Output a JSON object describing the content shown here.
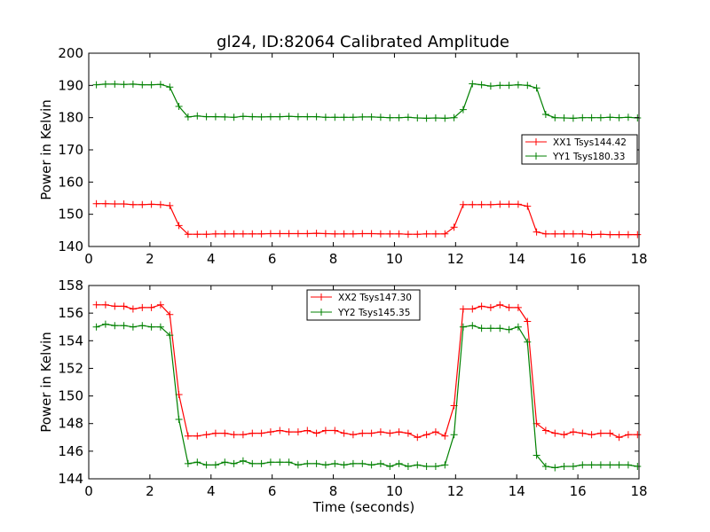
{
  "figure": {
    "title": "gl24, ID:82064 Calibrated Amplitude"
  },
  "chart_data": [
    {
      "type": "line",
      "title": "gl24, ID:82064 Calibrated Amplitude",
      "xlabel": "",
      "ylabel": "Power in Kelvin",
      "xlim": [
        0,
        18
      ],
      "ylim": [
        140,
        200
      ],
      "xticks": [
        0,
        2,
        4,
        6,
        8,
        10,
        12,
        14,
        16,
        18
      ],
      "yticks": [
        140,
        150,
        160,
        170,
        180,
        190,
        200
      ],
      "legend_position": "center-right",
      "grid": false,
      "x": [
        0.25,
        0.55,
        0.85,
        1.15,
        1.45,
        1.75,
        2.05,
        2.35,
        2.65,
        2.95,
        3.25,
        3.55,
        3.85,
        4.15,
        4.45,
        4.75,
        5.05,
        5.35,
        5.65,
        5.95,
        6.25,
        6.55,
        6.85,
        7.15,
        7.45,
        7.75,
        8.05,
        8.35,
        8.65,
        8.95,
        9.25,
        9.55,
        9.85,
        10.15,
        10.45,
        10.75,
        11.05,
        11.35,
        11.65,
        11.95,
        12.25,
        12.55,
        12.85,
        13.15,
        13.45,
        13.75,
        14.05,
        14.35,
        14.65,
        14.95,
        15.25,
        15.55,
        15.85,
        16.15,
        16.45,
        16.75,
        17.05,
        17.35,
        17.65,
        17.95
      ],
      "series": [
        {
          "name": "XX1 Tsys144.42",
          "color": "#ff0000",
          "values": [
            153.3,
            153.3,
            153.2,
            153.2,
            153.0,
            153.0,
            153.1,
            153.0,
            152.7,
            146.5,
            143.8,
            143.8,
            143.8,
            143.9,
            143.9,
            143.9,
            143.9,
            143.9,
            143.9,
            144.0,
            144.0,
            144.0,
            144.0,
            144.0,
            144.1,
            144.0,
            143.9,
            143.9,
            143.9,
            144.0,
            144.0,
            143.9,
            143.9,
            143.9,
            143.8,
            143.8,
            143.9,
            143.9,
            143.9,
            146.0,
            153.0,
            153.0,
            153.0,
            153.0,
            153.1,
            153.1,
            153.1,
            152.5,
            144.5,
            143.9,
            143.9,
            143.9,
            143.9,
            143.9,
            143.7,
            143.8,
            143.7,
            143.7,
            143.7,
            143.7
          ]
        },
        {
          "name": "YY1 Tsys180.33",
          "color": "#008000",
          "values": [
            190.2,
            190.4,
            190.4,
            190.3,
            190.4,
            190.2,
            190.2,
            190.3,
            189.5,
            183.5,
            180.2,
            180.5,
            180.3,
            180.3,
            180.2,
            180.1,
            180.4,
            180.3,
            180.2,
            180.3,
            180.3,
            180.4,
            180.3,
            180.3,
            180.3,
            180.1,
            180.1,
            180.1,
            180.1,
            180.2,
            180.2,
            180.1,
            180.0,
            180.0,
            180.1,
            179.9,
            179.8,
            179.9,
            179.8,
            180.0,
            182.5,
            190.5,
            190.2,
            189.8,
            190.0,
            190.0,
            190.2,
            190.0,
            189.2,
            181.0,
            180.0,
            179.9,
            179.8,
            180.0,
            180.0,
            180.0,
            180.1,
            180.0,
            180.1,
            179.9
          ]
        }
      ]
    },
    {
      "type": "line",
      "title": "",
      "xlabel": "Time (seconds)",
      "ylabel": "Power in Kelvin",
      "xlim": [
        0,
        18
      ],
      "ylim": [
        144,
        158
      ],
      "xticks": [
        0,
        2,
        4,
        6,
        8,
        10,
        12,
        14,
        16,
        18
      ],
      "yticks": [
        144,
        146,
        148,
        150,
        152,
        154,
        156,
        158
      ],
      "legend_position": "upper-center",
      "grid": false,
      "x": [
        0.25,
        0.55,
        0.85,
        1.15,
        1.45,
        1.75,
        2.05,
        2.35,
        2.65,
        2.95,
        3.25,
        3.55,
        3.85,
        4.15,
        4.45,
        4.75,
        5.05,
        5.35,
        5.65,
        5.95,
        6.25,
        6.55,
        6.85,
        7.15,
        7.45,
        7.75,
        8.05,
        8.35,
        8.65,
        8.95,
        9.25,
        9.55,
        9.85,
        10.15,
        10.45,
        10.75,
        11.05,
        11.35,
        11.65,
        11.95,
        12.25,
        12.55,
        12.85,
        13.15,
        13.45,
        13.75,
        14.05,
        14.35,
        14.65,
        14.95,
        15.25,
        15.55,
        15.85,
        16.15,
        16.45,
        16.75,
        17.05,
        17.35,
        17.65,
        17.95
      ],
      "series": [
        {
          "name": "XX2 Tsys147.30",
          "color": "#ff0000",
          "values": [
            156.6,
            156.6,
            156.5,
            156.5,
            156.3,
            156.4,
            156.4,
            156.6,
            155.9,
            150.1,
            147.1,
            147.1,
            147.2,
            147.3,
            147.3,
            147.2,
            147.2,
            147.3,
            147.3,
            147.4,
            147.5,
            147.4,
            147.4,
            147.5,
            147.3,
            147.5,
            147.5,
            147.3,
            147.2,
            147.3,
            147.3,
            147.4,
            147.3,
            147.4,
            147.3,
            147.0,
            147.2,
            147.4,
            147.1,
            149.3,
            156.3,
            156.3,
            156.5,
            156.4,
            156.6,
            156.4,
            156.4,
            155.4,
            148.0,
            147.5,
            147.3,
            147.2,
            147.4,
            147.3,
            147.2,
            147.3,
            147.3,
            147.0,
            147.2,
            147.2
          ]
        },
        {
          "name": "YY2 Tsys145.35",
          "color": "#008000",
          "values": [
            155.0,
            155.2,
            155.1,
            155.1,
            155.0,
            155.1,
            155.0,
            155.0,
            154.4,
            148.3,
            145.1,
            145.2,
            145.0,
            145.0,
            145.2,
            145.1,
            145.3,
            145.1,
            145.1,
            145.2,
            145.2,
            145.2,
            145.0,
            145.1,
            145.1,
            145.0,
            145.1,
            145.0,
            145.1,
            145.1,
            145.0,
            145.1,
            144.9,
            145.1,
            144.9,
            145.0,
            144.9,
            144.9,
            145.0,
            147.2,
            155.0,
            155.1,
            154.9,
            154.9,
            154.9,
            154.8,
            155.0,
            153.9,
            145.7,
            144.9,
            144.8,
            144.9,
            144.9,
            145.0,
            145.0,
            145.0,
            145.0,
            145.0,
            145.0,
            144.9
          ]
        }
      ]
    }
  ]
}
